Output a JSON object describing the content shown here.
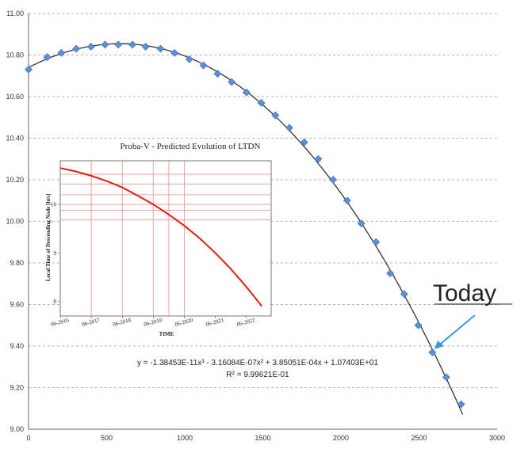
{
  "chart_data": [
    {
      "type": "scatter",
      "title": "",
      "xlabel": "",
      "ylabel": "",
      "xlim": [
        0,
        3000
      ],
      "ylim": [
        9.0,
        11.0
      ],
      "x_ticks": [
        "0",
        "500",
        "1000",
        "1500",
        "2000",
        "2500",
        "3000"
      ],
      "y_ticks": [
        "9.00",
        "9.20",
        "9.40",
        "9.60",
        "9.80",
        "10.00",
        "10.20",
        "10.40",
        "10.60",
        "10.80",
        "11.00"
      ],
      "grid": "horizontal-dashed",
      "x": [
        0,
        120,
        210,
        305,
        400,
        490,
        575,
        665,
        750,
        845,
        935,
        1030,
        1120,
        1210,
        1300,
        1395,
        1490,
        1580,
        1670,
        1765,
        1855,
        1950,
        2040,
        2130,
        2225,
        2315,
        2405,
        2495,
        2585,
        2675,
        2770
      ],
      "values": [
        10.73,
        10.79,
        10.81,
        10.83,
        10.84,
        10.85,
        10.85,
        10.85,
        10.84,
        10.83,
        10.81,
        10.78,
        10.75,
        10.71,
        10.67,
        10.62,
        10.57,
        10.51,
        10.45,
        10.38,
        10.3,
        10.2,
        10.1,
        9.99,
        9.9,
        9.75,
        9.65,
        9.5,
        9.37,
        9.25,
        9.12
      ],
      "trendline": {
        "coefficients": [
          -1.38453e-11,
          -3.16084e-07,
          0.000385051,
          10.7403
        ],
        "equation": "y = -1.38453E-11x³ - 3.16084E-07x² + 3.85051E-04x + 1.07403E+01",
        "r2": "R² = 9.99621E-01"
      },
      "marker_color": "#5b8fd6",
      "line_color": "#333333"
    },
    {
      "type": "line",
      "title": "Proba-V - Predicted Evolution of LTDN",
      "xlabel": "TIME",
      "ylabel": "Local Time of Descending Node [hrs]",
      "x_ticks": [
        "06-2016",
        "06-2017",
        "06-2018",
        "06-2019",
        "06-2020",
        "06-2021",
        "06-2022"
      ],
      "y_ticks": [
        "8",
        "9",
        "10"
      ],
      "xlim": [
        2016.0,
        2022.8
      ],
      "ylim": [
        7.7,
        10.9
      ],
      "x": [
        2016.0,
        2016.5,
        2017.0,
        2017.5,
        2018.0,
        2018.5,
        2019.0,
        2019.5,
        2020.0,
        2020.5,
        2021.0,
        2021.5,
        2022.0,
        2022.5
      ],
      "values": [
        10.75,
        10.68,
        10.59,
        10.48,
        10.35,
        10.18,
        10.0,
        9.79,
        9.56,
        9.3,
        9.0,
        8.67,
        8.3,
        7.9
      ],
      "vlines": [
        2017.0,
        2018.0,
        2019.0,
        2019.5,
        2020.0
      ],
      "hlines": [
        10.62,
        10.42,
        10.2,
        10.0,
        9.88,
        9.68
      ],
      "line_color": "#e02010",
      "grid_color": "#f2a0a0"
    }
  ],
  "annotation": {
    "label": "Today",
    "color": "#3a9ad9"
  }
}
